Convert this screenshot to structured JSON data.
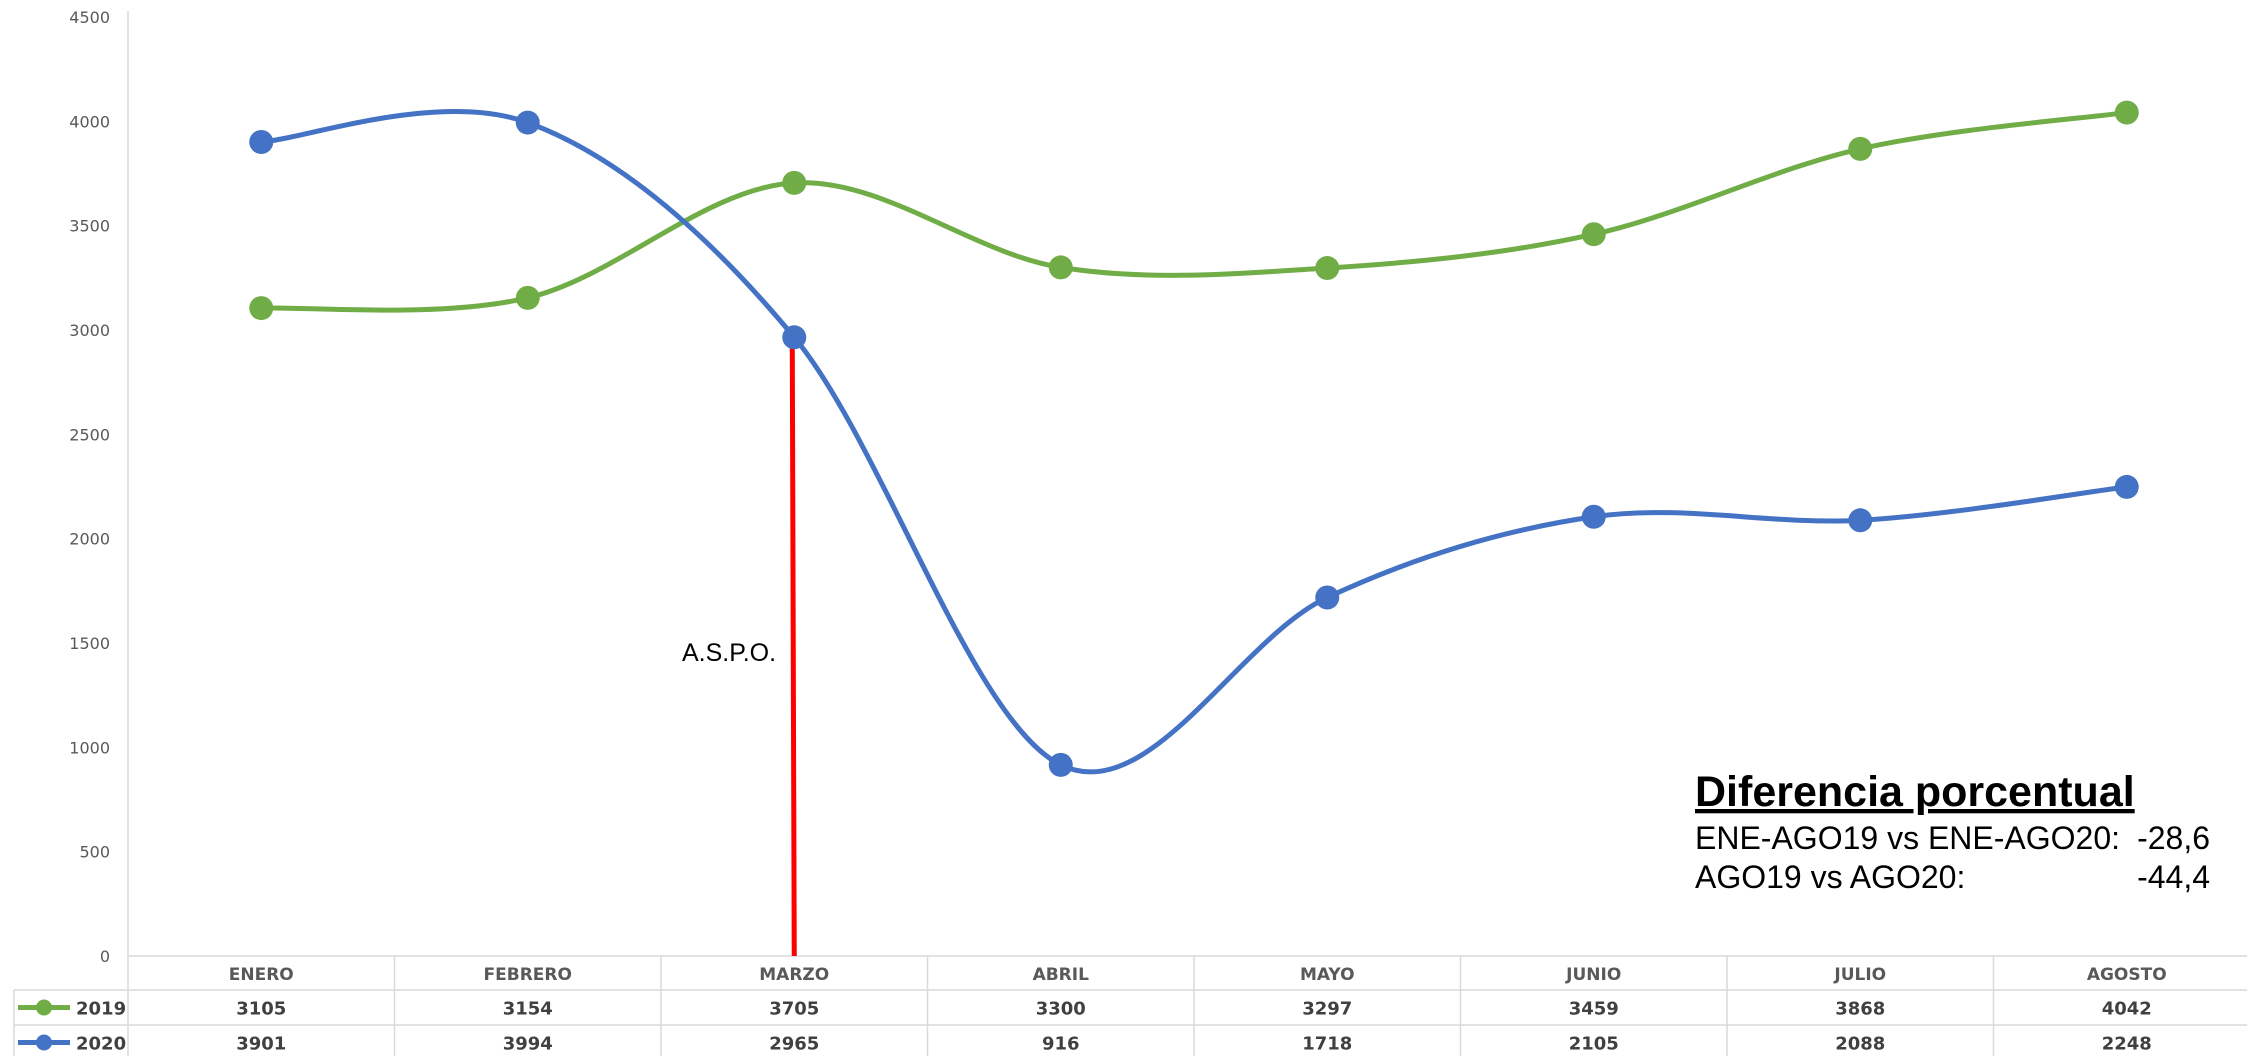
{
  "chart_data": {
    "type": "line",
    "categories": [
      "ENERO",
      "FEBRERO",
      "MARZO",
      "ABRIL",
      "MAYO",
      "JUNIO",
      "JULIO",
      "AGOSTO"
    ],
    "series": [
      {
        "name": "2019",
        "color": "#70ad47",
        "values": [
          3105,
          3154,
          3705,
          3300,
          3297,
          3459,
          3868,
          4042
        ]
      },
      {
        "name": "2020",
        "color": "#4472c4",
        "values": [
          3901,
          3994,
          2965,
          916,
          1718,
          2105,
          2088,
          2248
        ]
      }
    ],
    "ylim": [
      0,
      4500
    ],
    "yticks": [
      0,
      500,
      1000,
      1500,
      2000,
      2500,
      3000,
      3500,
      4000,
      4500
    ],
    "grid": false,
    "smooth": true,
    "data_table": true,
    "marker_line": {
      "category": "MARZO",
      "label": "A.S.P.O.",
      "color": "#ff0000"
    }
  },
  "annotation": {
    "title": "Diferencia porcentual",
    "rows": [
      {
        "label": "ENE-AGO19 vs ENE-AGO20:",
        "value": "-28,6"
      },
      {
        "label": "AGO19 vs AGO20:",
        "value": "-44,4"
      }
    ]
  }
}
